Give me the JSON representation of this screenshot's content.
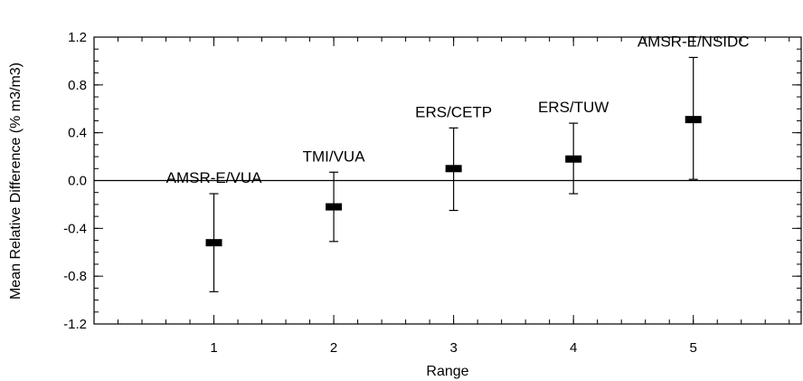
{
  "chart_data": {
    "type": "scatter",
    "xlabel": "Range",
    "ylabel": "Mean Relative Difference (% m3/m3)",
    "xlim": [
      0,
      5.9
    ],
    "ylim": [
      -1.2,
      1.2
    ],
    "x_ticks": [
      1,
      2,
      3,
      4,
      5
    ],
    "x_tick_labels": [
      "1",
      "2",
      "3",
      "4",
      "5"
    ],
    "y_ticks": [
      -1.2,
      -0.8,
      -0.4,
      0.0,
      0.4,
      0.8,
      1.2
    ],
    "y_tick_labels": [
      "-1.2",
      "-0.8",
      "-0.4",
      "0.0",
      "0.4",
      "0.8",
      "1.2"
    ],
    "reference_line_y": 0.0,
    "grid": false,
    "points": [
      {
        "x": 1,
        "y": -0.52,
        "low": -0.93,
        "high": -0.11,
        "label": "AMSR-E/VUA"
      },
      {
        "x": 2,
        "y": -0.22,
        "low": -0.51,
        "high": 0.07,
        "label": "TMI/VUA"
      },
      {
        "x": 3,
        "y": 0.1,
        "low": -0.25,
        "high": 0.44,
        "label": "ERS/CETP"
      },
      {
        "x": 4,
        "y": 0.18,
        "low": -0.11,
        "high": 0.48,
        "label": "ERS/TUW"
      },
      {
        "x": 5,
        "y": 0.51,
        "low": 0.01,
        "high": 1.03,
        "label": "AMSR-E/NSIDC"
      }
    ]
  }
}
